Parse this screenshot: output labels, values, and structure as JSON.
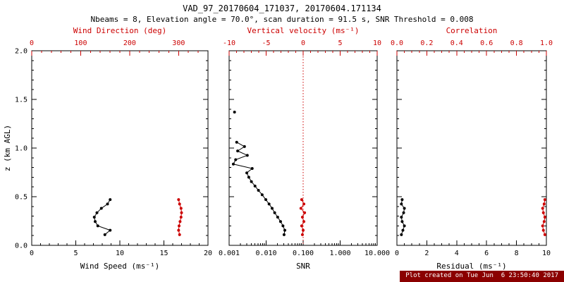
{
  "chart_data": {
    "type": "line",
    "title": "VAD_97_20170604_171037, 20170604.171134",
    "subtitle": "Nbeams = 8, Elevation angle = 70.0°, scan duration = 91.5 s, SNR Threshold = 0.008",
    "ylabel": "z (km AGL)",
    "ylim": [
      0,
      2.0
    ],
    "yticks": [
      0,
      0.5,
      1.0,
      1.5,
      2.0
    ],
    "ytick_labels": [
      "0.0",
      "0.5",
      "1.0",
      "1.5",
      "2.0"
    ],
    "y_minor_div": 5,
    "panels": [
      {
        "name": "wind",
        "bottom_axis": {
          "label": "Wind Speed (ms⁻¹)",
          "min": 0,
          "max": 20,
          "scale": "linear",
          "ticks": [
            0,
            5,
            10,
            15,
            20
          ],
          "tick_labels": [
            "0",
            "5",
            "10",
            "15",
            "20"
          ],
          "minor_div": 5,
          "color": "#000000"
        },
        "top_axis": {
          "label": "Wind Direction (deg)",
          "min": 0,
          "max": 360,
          "scale": "linear",
          "ticks": [
            0,
            100,
            200,
            300
          ],
          "tick_labels": [
            "0",
            "100",
            "200",
            "300"
          ],
          "minor_div": 5,
          "color": "#cc0000"
        },
        "series": [
          {
            "name": "wind-speed",
            "axis": "bottom",
            "color": "#000000",
            "points": [
              [
                8.9,
                0.47
              ],
              [
                8.6,
                0.425
              ],
              [
                7.9,
                0.38
              ],
              [
                7.4,
                0.335
              ],
              [
                7.1,
                0.29
              ],
              [
                7.2,
                0.245
              ],
              [
                7.5,
                0.2
              ],
              [
                8.9,
                0.155
              ],
              [
                8.3,
                0.11
              ]
            ]
          },
          {
            "name": "wind-direction",
            "axis": "top",
            "color": "#cc0000",
            "points": [
              [
                300,
                0.47
              ],
              [
                302,
                0.425
              ],
              [
                305,
                0.38
              ],
              [
                306,
                0.335
              ],
              [
                305,
                0.29
              ],
              [
                303,
                0.245
              ],
              [
                301,
                0.2
              ],
              [
                300,
                0.155
              ],
              [
                302,
                0.11
              ]
            ]
          }
        ]
      },
      {
        "name": "snr",
        "bottom_axis": {
          "label": "SNR",
          "min": 0.001,
          "max": 10,
          "scale": "log",
          "ticks": [
            0.001,
            0.01,
            0.1,
            1,
            10
          ],
          "tick_labels": [
            "0.001",
            "0.010",
            "0.100",
            "1.000",
            "10.000"
          ],
          "color": "#000000"
        },
        "top_axis": {
          "label": "Vertical velocity (ms⁻¹)",
          "min": -10,
          "max": 10,
          "scale": "linear",
          "ticks": [
            -10,
            -5,
            0,
            5,
            10
          ],
          "tick_labels": [
            "-10",
            "-5",
            "0",
            "5",
            "10"
          ],
          "minor_div": 5,
          "color": "#cc0000"
        },
        "ref_line": {
          "axis": "top",
          "value": 0,
          "color": "#cc0000",
          "style": "dotted"
        },
        "series": [
          {
            "name": "snr-profile",
            "axis": "bottom",
            "color": "#000000",
            "points": [
              [
                0.0014,
                1.37
              ],
              null,
              [
                0.0016,
                1.06
              ],
              [
                0.0026,
                1.015
              ],
              [
                0.0017,
                0.97
              ],
              [
                0.0031,
                0.925
              ],
              [
                0.0015,
                0.88
              ],
              [
                0.0013,
                0.835
              ],
              [
                0.0042,
                0.79
              ],
              [
                0.003,
                0.745
              ],
              [
                0.0034,
                0.7
              ],
              [
                0.004,
                0.655
              ],
              [
                0.005,
                0.61
              ],
              [
                0.0062,
                0.565
              ],
              [
                0.0078,
                0.52
              ],
              [
                0.0098,
                0.47
              ],
              [
                0.012,
                0.425
              ],
              [
                0.0145,
                0.38
              ],
              [
                0.017,
                0.335
              ],
              [
                0.0205,
                0.29
              ],
              [
                0.0245,
                0.245
              ],
              [
                0.0285,
                0.2
              ],
              [
                0.032,
                0.155
              ],
              [
                0.0305,
                0.11
              ]
            ]
          },
          {
            "name": "vertical-velocity",
            "axis": "top",
            "color": "#cc0000",
            "points": [
              [
                -0.2,
                0.47
              ],
              [
                0.1,
                0.425
              ],
              [
                -0.3,
                0.38
              ],
              [
                0.2,
                0.335
              ],
              [
                -0.1,
                0.29
              ],
              [
                0.1,
                0.245
              ],
              [
                -0.2,
                0.2
              ],
              [
                0.0,
                0.155
              ],
              [
                -0.1,
                0.11
              ]
            ]
          }
        ]
      },
      {
        "name": "residual",
        "bottom_axis": {
          "label": "Residual (ms⁻¹)",
          "min": 0,
          "max": 10,
          "scale": "linear",
          "ticks": [
            0,
            2,
            4,
            6,
            8,
            10
          ],
          "tick_labels": [
            "0",
            "2",
            "4",
            "6",
            "8",
            "10"
          ],
          "minor_div": 4,
          "color": "#000000"
        },
        "top_axis": {
          "label": "Correlation",
          "min": 0,
          "max": 1,
          "scale": "linear",
          "ticks": [
            0,
            0.2,
            0.4,
            0.6,
            0.8,
            1.0
          ],
          "tick_labels": [
            "0.0",
            "0.2",
            "0.4",
            "0.6",
            "0.8",
            "1.0"
          ],
          "minor_div": 4,
          "color": "#cc0000"
        },
        "series": [
          {
            "name": "residual",
            "axis": "bottom",
            "color": "#000000",
            "points": [
              [
                0.35,
                0.47
              ],
              [
                0.3,
                0.425
              ],
              [
                0.5,
                0.38
              ],
              [
                0.45,
                0.335
              ],
              [
                0.3,
                0.29
              ],
              [
                0.35,
                0.245
              ],
              [
                0.5,
                0.2
              ],
              [
                0.4,
                0.155
              ],
              [
                0.3,
                0.11
              ]
            ]
          },
          {
            "name": "correlation",
            "axis": "top",
            "color": "#cc0000",
            "points": [
              [
                0.99,
                0.47
              ],
              [
                0.985,
                0.425
              ],
              [
                0.975,
                0.38
              ],
              [
                0.98,
                0.335
              ],
              [
                0.99,
                0.29
              ],
              [
                0.985,
                0.245
              ],
              [
                0.975,
                0.2
              ],
              [
                0.98,
                0.155
              ],
              [
                0.99,
                0.11
              ]
            ]
          }
        ]
      }
    ]
  },
  "footer": {
    "text": "Plot created on Tue Jun  6 23:50:40 2017",
    "bg_color": "#8b0000",
    "text_color": "#ffffff"
  },
  "colors": {
    "primary": "#000000",
    "secondary": "#cc0000",
    "background": "#ffffff"
  }
}
